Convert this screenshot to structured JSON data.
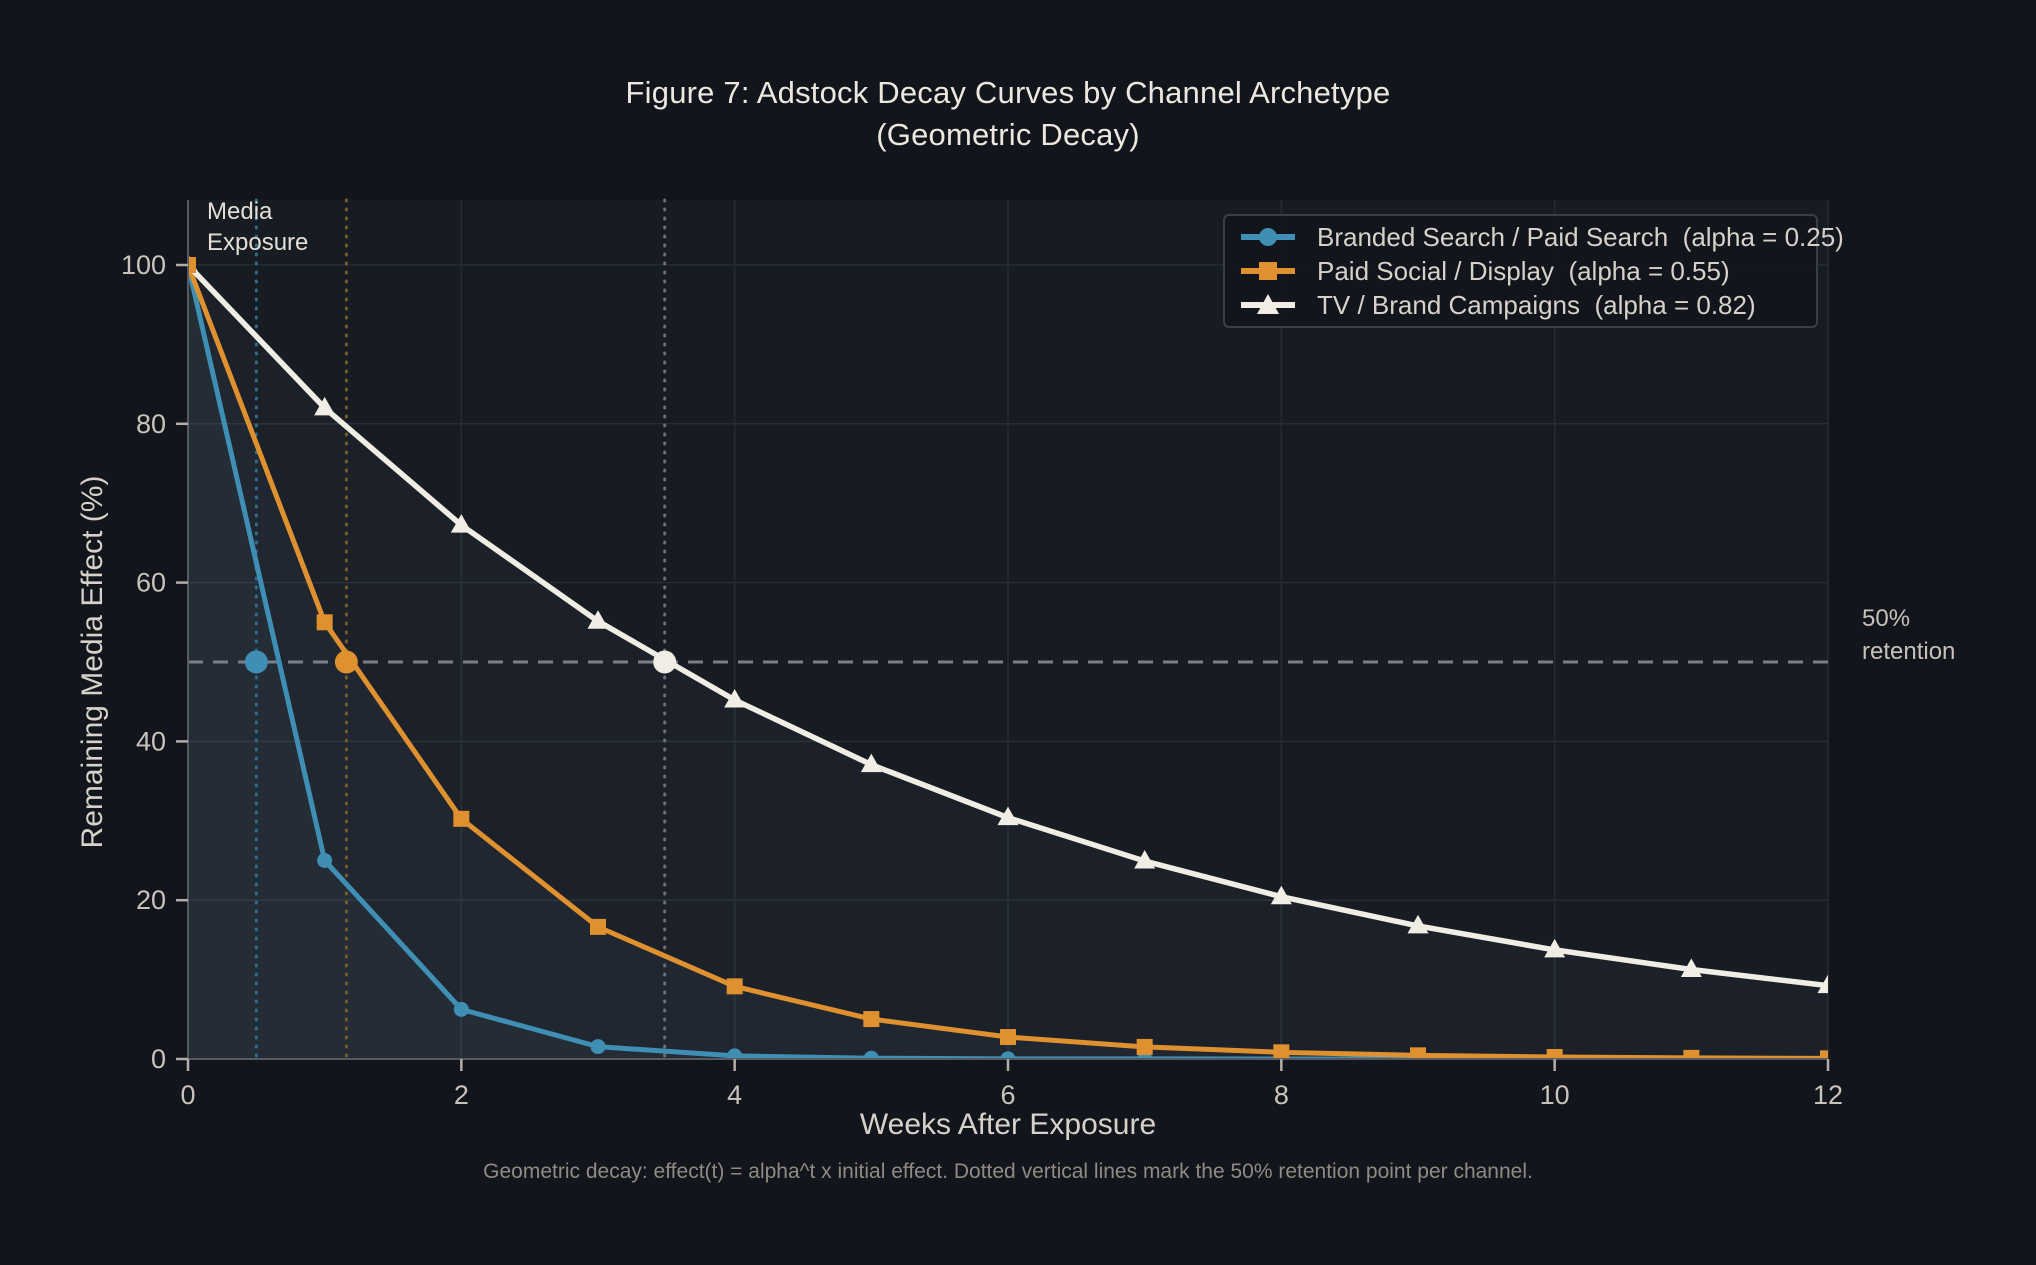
{
  "figure": {
    "title": "Figure 7: Adstock Decay Curves by Channel Archetype\n(Geometric Decay)",
    "caption": "Geometric decay: effect(t) = alpha^t x initial effect. Dotted vertical lines mark the 50% retention point per channel.",
    "background_color": "#12151b",
    "plot_background_color": "#171b22"
  },
  "chart_data": {
    "type": "line",
    "title": "Figure 7: Adstock Decay Curves by Channel Archetype (Geometric Decay)",
    "xlabel": "Weeks After Exposure",
    "ylabel": "Remaining Media Effect (%)",
    "x": [
      0,
      1,
      2,
      3,
      4,
      5,
      6,
      7,
      8,
      9,
      10,
      11,
      12
    ],
    "xticks": [
      0,
      2,
      4,
      6,
      8,
      10,
      12
    ],
    "yticks": [
      0,
      20,
      40,
      60,
      80,
      100
    ],
    "xlim": [
      0,
      12
    ],
    "ylim": [
      0,
      108
    ],
    "grid": true,
    "legend_position": "upper right",
    "series": [
      {
        "name": "Branded Search / Paid Search  (alpha = 0.25)",
        "alpha": 0.25,
        "color": "#3f8fb5",
        "marker": "circle",
        "values": [
          100,
          25,
          6.25,
          1.56,
          0.39,
          0.1,
          0.02,
          0.01,
          0,
          0,
          0,
          0,
          0
        ]
      },
      {
        "name": "Paid Social / Display  (alpha = 0.55)",
        "alpha": 0.55,
        "color": "#e0912f",
        "marker": "square",
        "values": [
          100,
          55,
          30.25,
          16.64,
          9.15,
          5.03,
          2.77,
          1.52,
          0.84,
          0.46,
          0.25,
          0.14,
          0.08
        ]
      },
      {
        "name": "TV / Brand Campaigns  (alpha = 0.82)",
        "alpha": 0.82,
        "color": "#f0ede5",
        "marker": "triangle",
        "values": [
          100,
          82,
          67.24,
          55.14,
          45.22,
          37.07,
          30.4,
          24.93,
          20.44,
          16.76,
          13.74,
          11.27,
          9.24
        ]
      }
    ],
    "half_life_markers": [
      {
        "x": 0.5,
        "y": 50,
        "line_color": "#2f6d8e",
        "dot_color": "#3f8fb5"
      },
      {
        "x": 1.159,
        "y": 50,
        "line_color": "#7a5a28",
        "dot_color": "#e0912f"
      },
      {
        "x": 3.488,
        "y": 50,
        "line_color": "#6b7077",
        "dot_color": "#f0ede5"
      }
    ],
    "reference_line": {
      "y": 50,
      "label": "50%\nretention",
      "color": "#7b8088"
    },
    "annotations": [
      {
        "text": "Media\nExposure",
        "x": 0.15,
        "y": 106
      }
    ]
  }
}
